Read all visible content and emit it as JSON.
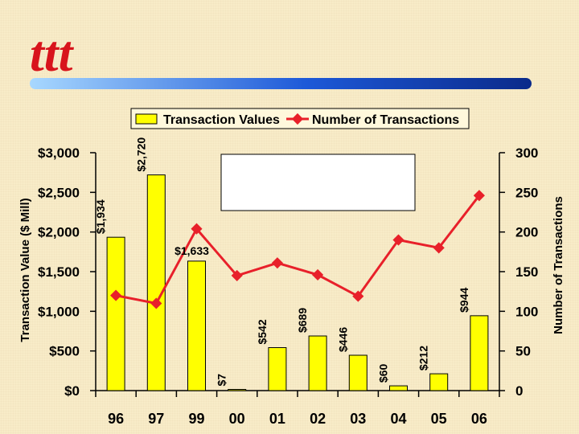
{
  "logo": {
    "text": "ttt"
  },
  "chart_data": {
    "type": "bar",
    "categories": [
      "96",
      "97",
      "99",
      "00",
      "01",
      "02",
      "03",
      "04",
      "05",
      "06"
    ],
    "series": [
      {
        "name": "Transaction Values",
        "type": "bar",
        "axis": "left",
        "color": "#ffff00",
        "values": [
          1934,
          2720,
          1633,
          7,
          542,
          689,
          446,
          60,
          212,
          944
        ],
        "data_labels": [
          "$1,934",
          "$2,720",
          "$1,633",
          "$7",
          "$542",
          "$689",
          "$446",
          "$60",
          "$212",
          "$944"
        ]
      },
      {
        "name": "Number of Transactions",
        "type": "line",
        "axis": "right",
        "color": "#e8202a",
        "values": [
          120,
          110,
          204,
          145,
          161,
          146,
          119,
          190,
          180,
          246
        ]
      }
    ],
    "ylabel_left": "Transaction Value ($ Mill)",
    "ylabel_right": "Number of Transactions",
    "ylim_left": [
      0,
      3000
    ],
    "ylim_right": [
      0,
      300
    ],
    "left_ticks": [
      "$0",
      "$500",
      "$1,000",
      "$1,500",
      "$2,000",
      "$2,500",
      "$3,000"
    ],
    "right_ticks": [
      "0",
      "50",
      "100",
      "150",
      "200",
      "250",
      "300"
    ],
    "legend_position": "top",
    "grid": false
  }
}
